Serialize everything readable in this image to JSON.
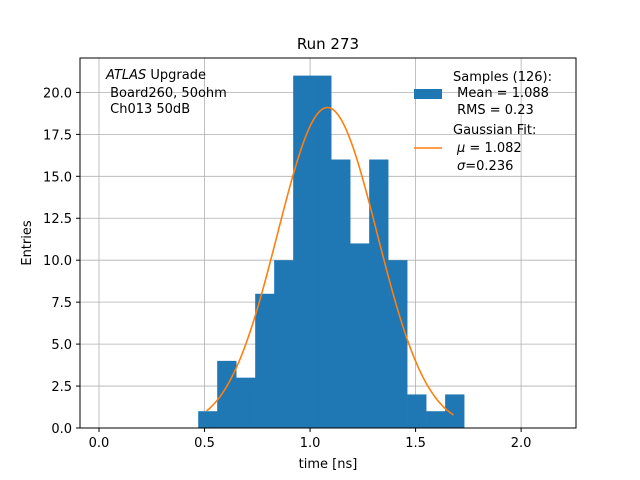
{
  "chart_data": {
    "type": "bar",
    "title": "Run 273",
    "xlabel": "time [ns]",
    "ylabel": "Entries",
    "xlim": [
      -0.09,
      2.26
    ],
    "ylim": [
      0,
      22.05
    ],
    "grid": true,
    "x_ticks": [
      0.0,
      0.5,
      1.0,
      1.5,
      2.0
    ],
    "x_tick_labels": [
      "0.0",
      "0.5",
      "1.0",
      "1.5",
      "2.0"
    ],
    "y_ticks": [
      0,
      2.5,
      5,
      7.5,
      10,
      12.5,
      15,
      17.5,
      20
    ],
    "y_tick_labels": [
      "0.0",
      "2.5",
      "5.0",
      "7.5",
      "10.0",
      "12.5",
      "15.0",
      "17.5",
      "20.0"
    ],
    "bin_edges": [
      0.47,
      0.56,
      0.65,
      0.74,
      0.83,
      0.92,
      1.01,
      1.1,
      1.19,
      1.28,
      1.37,
      1.46,
      1.55,
      1.64,
      1.73
    ],
    "values": [
      1,
      4,
      3,
      8,
      10,
      21,
      21,
      16,
      11,
      16,
      10,
      2,
      1,
      2
    ],
    "bar_color": "#1f77b4",
    "fit": {
      "name": "Gaussian Fit",
      "mu": 1.082,
      "sigma": 0.236,
      "amplitude": 19.1,
      "x_range": [
        0.51,
        1.68
      ],
      "color": "#ff7f0e"
    },
    "annotation": {
      "italic_part": "ATLAS",
      "line1_rest": " Upgrade",
      "line2": " Board260, 50ohm",
      "line3": " Ch013 50dB"
    },
    "legend": {
      "placement": "top-right",
      "samples": {
        "line1": "Samples (126):",
        "line2": " Mean = 1.088",
        "line3": " RMS = 0.23"
      },
      "fit": {
        "line1": "Gaussian Fit:",
        "line2_symbol": "μ",
        "line2_rest": " = 1.082",
        "line3_symbol": "σ",
        "line3_rest": "=0.236"
      }
    }
  }
}
